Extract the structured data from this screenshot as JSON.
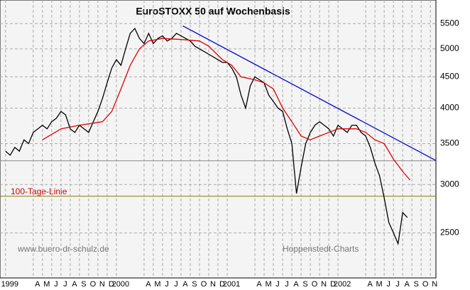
{
  "chart_data": {
    "type": "line",
    "title": "EuroSTOXX 50 auf Wochenbasis",
    "log_y": true,
    "grid": true,
    "xlim": [
      -0.6,
      46.6
    ],
    "ylim": [
      2110,
      6010
    ],
    "yticks": [
      2500,
      3000,
      3500,
      4000,
      4500,
      5000,
      5500
    ],
    "xticks": [
      {
        "value": 0,
        "label": "1999"
      },
      {
        "value": 3,
        "label": "A"
      },
      {
        "value": 4,
        "label": "M"
      },
      {
        "value": 5,
        "label": "J"
      },
      {
        "value": 6,
        "label": "J"
      },
      {
        "value": 7,
        "label": "A"
      },
      {
        "value": 8,
        "label": "S"
      },
      {
        "value": 9,
        "label": "O"
      },
      {
        "value": 10,
        "label": "N"
      },
      {
        "value": 11,
        "label": "D"
      },
      {
        "value": 12,
        "label": "2000"
      },
      {
        "value": 15,
        "label": "A"
      },
      {
        "value": 16,
        "label": "M"
      },
      {
        "value": 17,
        "label": "J"
      },
      {
        "value": 18,
        "label": "J"
      },
      {
        "value": 19,
        "label": "A"
      },
      {
        "value": 20,
        "label": "S"
      },
      {
        "value": 21,
        "label": "O"
      },
      {
        "value": 22,
        "label": "N"
      },
      {
        "value": 23,
        "label": "D"
      },
      {
        "value": 24,
        "label": "2001"
      },
      {
        "value": 27,
        "label": "A"
      },
      {
        "value": 28,
        "label": "M"
      },
      {
        "value": 29,
        "label": "J"
      },
      {
        "value": 30,
        "label": "J"
      },
      {
        "value": 31,
        "label": "A"
      },
      {
        "value": 32,
        "label": "S"
      },
      {
        "value": 33,
        "label": "O"
      },
      {
        "value": 34,
        "label": "N"
      },
      {
        "value": 35,
        "label": "D"
      },
      {
        "value": 36,
        "label": "2002"
      },
      {
        "value": 39,
        "label": "A"
      },
      {
        "value": 40,
        "label": "M"
      },
      {
        "value": 41,
        "label": "J"
      },
      {
        "value": 42,
        "label": "J"
      },
      {
        "value": 43,
        "label": "A"
      },
      {
        "value": 44,
        "label": "S"
      },
      {
        "value": 45,
        "label": "O"
      },
      {
        "value": 46,
        "label": "N"
      }
    ],
    "series": [
      {
        "color": "#000000",
        "x": [
          0,
          0.5,
          1,
          1.5,
          2,
          2.5,
          3,
          3.5,
          4,
          4.5,
          5,
          5.5,
          6,
          6.5,
          7,
          7.5,
          8,
          8.5,
          9,
          9.5,
          10,
          10.5,
          11,
          11.5,
          12,
          12.5,
          13,
          13.5,
          14,
          14.5,
          15,
          15.5,
          16,
          16.5,
          17,
          17.5,
          18,
          18.5,
          19,
          19.5,
          20,
          20.5,
          21,
          21.5,
          22,
          22.5,
          23,
          23.5,
          24,
          24.5,
          25,
          25.5,
          26,
          26.5,
          27,
          27.5,
          28,
          28.5,
          29,
          29.5,
          30,
          30.5,
          31,
          31.5,
          32,
          32.5,
          33,
          33.5,
          34,
          34.5,
          35,
          35.5,
          36,
          36.5,
          37,
          37.5,
          38,
          38.5,
          39,
          39.5,
          40,
          40.5,
          41,
          41.5,
          42,
          42.5,
          43,
          43.5
        ],
        "values": [
          3400,
          3350,
          3450,
          3400,
          3550,
          3500,
          3650,
          3700,
          3750,
          3700,
          3800,
          3850,
          3950,
          3900,
          3700,
          3650,
          3750,
          3700,
          3650,
          3800,
          3950,
          4150,
          4400,
          4650,
          4800,
          4700,
          5000,
          5300,
          5400,
          5200,
          5100,
          5300,
          5100,
          5200,
          5250,
          5150,
          5200,
          5300,
          5250,
          5200,
          5150,
          5050,
          5000,
          4950,
          4900,
          4850,
          4800,
          4750,
          4750,
          4650,
          4500,
          4200,
          4000,
          4350,
          4500,
          4450,
          4400,
          4200,
          4100,
          4000,
          3950,
          3700,
          3500,
          2900,
          3200,
          3500,
          3650,
          3750,
          3800,
          3750,
          3700,
          3600,
          3750,
          3700,
          3650,
          3750,
          3750,
          3650,
          3600,
          3450,
          3250,
          3100,
          2850,
          2600,
          2500,
          2400,
          2700,
          2650
        ]
      },
      {
        "color": "#dd0000",
        "x": [
          4,
          6,
          8,
          9.5,
          10.5,
          11.5,
          12.5,
          13.5,
          14.5,
          15.5,
          17,
          19,
          21,
          22,
          23.5,
          24.5,
          25.5,
          27,
          28,
          29,
          30,
          31,
          32,
          33,
          34,
          35,
          36,
          37,
          38,
          39,
          40,
          41,
          42,
          43,
          43.8
        ],
        "values": [
          3550,
          3700,
          3750,
          3780,
          3800,
          3950,
          4300,
          4700,
          5000,
          5150,
          5200,
          5180,
          5150,
          5050,
          4800,
          4700,
          4500,
          4450,
          4400,
          4300,
          4000,
          3800,
          3600,
          3550,
          3600,
          3650,
          3700,
          3700,
          3700,
          3650,
          3550,
          3500,
          3300,
          3150,
          3050
        ]
      },
      {
        "color": "#0000cc",
        "x": [
          19.2,
          46.6
        ],
        "values": [
          5450,
          3283
        ]
      }
    ],
    "hlines": [
      {
        "value": 3280,
        "color": "#888888"
      },
      {
        "value": 2870,
        "color": "#808000"
      }
    ],
    "annotations": [
      {
        "text": "100-Tage-Linie",
        "color": "#cc0000"
      },
      {
        "text": "www.buero-dr-schulz.de",
        "color": "#777777"
      },
      {
        "text": "Hoppenstedt-Charts",
        "color": "#777777"
      }
    ]
  }
}
